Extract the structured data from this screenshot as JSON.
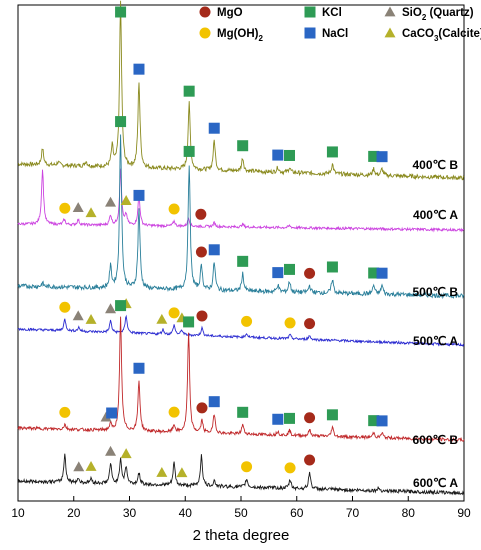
{
  "chart_data": {
    "type": "line",
    "xlabel": "2 theta degree",
    "xlim": [
      10,
      90
    ],
    "xticks": [
      "10",
      "20",
      "30",
      "40",
      "50",
      "60",
      "70",
      "80",
      "90"
    ],
    "legend": {
      "placement": "top-right",
      "entries": [
        {
          "key": "mgo",
          "label": "MgO",
          "marker": "circle",
          "color": "#a52a1a"
        },
        {
          "key": "kcl",
          "label": "KCl",
          "marker": "square",
          "color": "#2e9b55"
        },
        {
          "key": "sio2",
          "label": "SiO2 (Quartz)",
          "label_main": "SiO",
          "label_sub": "2",
          "label_rest": " (Quartz)",
          "marker": "triangle",
          "color": "#8a8277"
        },
        {
          "key": "mgoh2",
          "label": "Mg(OH)2",
          "label_main": "Mg(OH)",
          "label_sub": "2",
          "label_rest": "",
          "marker": "circle",
          "color": "#f2c300"
        },
        {
          "key": "nacl",
          "label": "NaCl",
          "marker": "square",
          "color": "#2a66c4"
        },
        {
          "key": "caco3",
          "label": "CaCO3(Calcite)",
          "label_main": "CaCO",
          "label_sub": "3",
          "label_rest": "(Calcite)",
          "marker": "triangle",
          "color": "#b5b12a"
        }
      ]
    },
    "series": [
      {
        "name": "400℃ B",
        "color": "#8a8a1e",
        "baseline": 0.0,
        "peaks": [
          [
            14.4,
            0.1
          ],
          [
            17.2,
            0.02
          ],
          [
            22.2,
            0.03
          ],
          [
            26.9,
            0.12
          ],
          [
            28.4,
            1.0
          ],
          [
            31.7,
            0.52
          ],
          [
            40.7,
            0.4
          ],
          [
            45.2,
            0.18
          ],
          [
            50.3,
            0.08
          ],
          [
            56.6,
            0.03
          ],
          [
            58.7,
            0.03
          ],
          [
            66.4,
            0.06
          ],
          [
            73.8,
            0.04
          ],
          [
            75.3,
            0.04
          ]
        ],
        "markers": [
          {
            "x": 28.4,
            "kind": "kcl"
          },
          [
            31.7,
            "nacl"
          ],
          [
            40.7,
            "kcl"
          ],
          [
            45.2,
            "nacl"
          ],
          [
            50.3,
            "kcl"
          ],
          [
            56.6,
            "nacl"
          ],
          [
            58.7,
            "kcl"
          ],
          [
            66.4,
            "kcl"
          ],
          [
            73.8,
            "kcl"
          ],
          [
            75.3,
            "nacl"
          ]
        ]
      },
      {
        "name": "400℃ A",
        "color": "#cc44e0",
        "baseline": 0.0,
        "peaks": [
          [
            14.4,
            0.55
          ],
          [
            18.3,
            0.05
          ],
          [
            20.8,
            0.05
          ],
          [
            26.6,
            0.1
          ],
          [
            28.4,
            0.55
          ],
          [
            29.4,
            0.1
          ],
          [
            31.7,
            0.3
          ],
          [
            38.0,
            0.05
          ],
          [
            40.6,
            0.08
          ],
          [
            45.2,
            0.04
          ],
          [
            50.3,
            0.03
          ],
          [
            58.7,
            0.02
          ]
        ],
        "markers": [
          [
            18.4,
            "mgoh2"
          ],
          [
            20.8,
            "sio2"
          ],
          [
            23.1,
            "caco3"
          ],
          [
            26.6,
            "sio2"
          ],
          [
            29.4,
            "caco3"
          ],
          [
            38.0,
            "mgoh2"
          ],
          [
            42.8,
            "mgo"
          ]
        ]
      },
      {
        "name": "500℃ B",
        "color": "#2a7f9a",
        "baseline": 0.0,
        "peaks": [
          [
            14.4,
            0.02
          ],
          [
            26.6,
            0.12
          ],
          [
            28.4,
            0.88
          ],
          [
            31.7,
            0.46
          ],
          [
            40.7,
            0.72
          ],
          [
            42.9,
            0.14
          ],
          [
            45.2,
            0.16
          ],
          [
            50.3,
            0.1
          ],
          [
            56.6,
            0.04
          ],
          [
            58.7,
            0.06
          ],
          [
            62.3,
            0.04
          ],
          [
            66.4,
            0.08
          ],
          [
            73.8,
            0.05
          ],
          [
            75.3,
            0.05
          ]
        ],
        "markers": [
          [
            28.4,
            "kcl"
          ],
          [
            31.7,
            "nacl"
          ],
          [
            40.7,
            "kcl"
          ],
          [
            42.9,
            "mgo"
          ],
          [
            45.2,
            "nacl"
          ],
          [
            50.3,
            "kcl"
          ],
          [
            56.6,
            "nacl"
          ],
          [
            58.7,
            "kcl"
          ],
          [
            62.3,
            "mgo"
          ],
          [
            66.4,
            "kcl"
          ],
          [
            73.8,
            "kcl"
          ],
          [
            75.3,
            "nacl"
          ]
        ]
      },
      {
        "name": "500℃ A",
        "color": "#2a2ad0",
        "baseline": 0.0,
        "peaks": [
          [
            18.4,
            0.12
          ],
          [
            20.9,
            0.04
          ],
          [
            26.6,
            0.12
          ],
          [
            29.4,
            0.18
          ],
          [
            36.0,
            0.05
          ],
          [
            38.0,
            0.1
          ],
          [
            39.4,
            0.05
          ],
          [
            43.0,
            0.08
          ],
          [
            51.0,
            0.04
          ],
          [
            58.8,
            0.04
          ],
          [
            62.3,
            0.04
          ]
        ],
        "markers": [
          [
            18.4,
            "mgoh2"
          ],
          [
            20.8,
            "sio2"
          ],
          [
            23.1,
            "caco3"
          ],
          [
            26.6,
            "sio2"
          ],
          [
            29.4,
            "caco3"
          ],
          [
            35.8,
            "caco3"
          ],
          [
            38.0,
            "mgoh2"
          ],
          [
            39.4,
            "caco3"
          ],
          [
            43.0,
            "mgo"
          ],
          [
            51.0,
            "mgoh2"
          ],
          [
            58.8,
            "mgoh2"
          ],
          [
            62.3,
            "mgo"
          ]
        ]
      },
      {
        "name": "600℃ B",
        "color": "#c0282a",
        "baseline": 0.0,
        "peaks": [
          [
            18.4,
            0.04
          ],
          [
            26.6,
            0.05
          ],
          [
            28.4,
            0.94
          ],
          [
            31.7,
            0.42
          ],
          [
            38.0,
            0.06
          ],
          [
            40.6,
            0.82
          ],
          [
            43.0,
            0.1
          ],
          [
            45.2,
            0.16
          ],
          [
            50.3,
            0.08
          ],
          [
            56.6,
            0.03
          ],
          [
            58.7,
            0.04
          ],
          [
            62.3,
            0.05
          ],
          [
            66.4,
            0.08
          ],
          [
            73.8,
            0.04
          ],
          [
            75.3,
            0.04
          ]
        ],
        "markers": [
          [
            18.4,
            "mgoh2"
          ],
          [
            25.8,
            "sio2"
          ],
          [
            26.8,
            "nacl"
          ],
          [
            28.4,
            "kcl"
          ],
          [
            31.7,
            "nacl"
          ],
          [
            38.0,
            "mgoh2"
          ],
          [
            40.6,
            "kcl"
          ],
          [
            43.0,
            "mgo"
          ],
          [
            45.2,
            "nacl"
          ],
          [
            50.3,
            "kcl"
          ],
          [
            56.6,
            "nacl"
          ],
          [
            58.7,
            "kcl"
          ],
          [
            62.3,
            "mgo"
          ],
          [
            66.4,
            "kcl"
          ],
          [
            73.8,
            "kcl"
          ],
          [
            75.3,
            "nacl"
          ]
        ]
      },
      {
        "name": "600℃ A",
        "color": "#1a1a1a",
        "baseline": 0.0,
        "peaks": [
          [
            18.4,
            0.2
          ],
          [
            20.8,
            0.03
          ],
          [
            23.1,
            0.03
          ],
          [
            26.6,
            0.14
          ],
          [
            28.4,
            0.18
          ],
          [
            29.4,
            0.12
          ],
          [
            31.7,
            0.08
          ],
          [
            38.0,
            0.16
          ],
          [
            42.9,
            0.22
          ],
          [
            45.2,
            0.04
          ],
          [
            51.0,
            0.06
          ],
          [
            58.8,
            0.06
          ],
          [
            62.3,
            0.12
          ],
          [
            74.7,
            0.02
          ]
        ],
        "markers": [
          [
            20.9,
            "sio2"
          ],
          [
            23.1,
            "caco3"
          ],
          [
            26.6,
            "sio2"
          ],
          [
            29.4,
            "caco3"
          ],
          [
            35.8,
            "caco3"
          ],
          [
            39.4,
            "caco3"
          ],
          [
            51.0,
            "mgoh2"
          ],
          [
            58.8,
            "mgoh2"
          ],
          [
            62.3,
            "mgo"
          ]
        ]
      }
    ]
  }
}
